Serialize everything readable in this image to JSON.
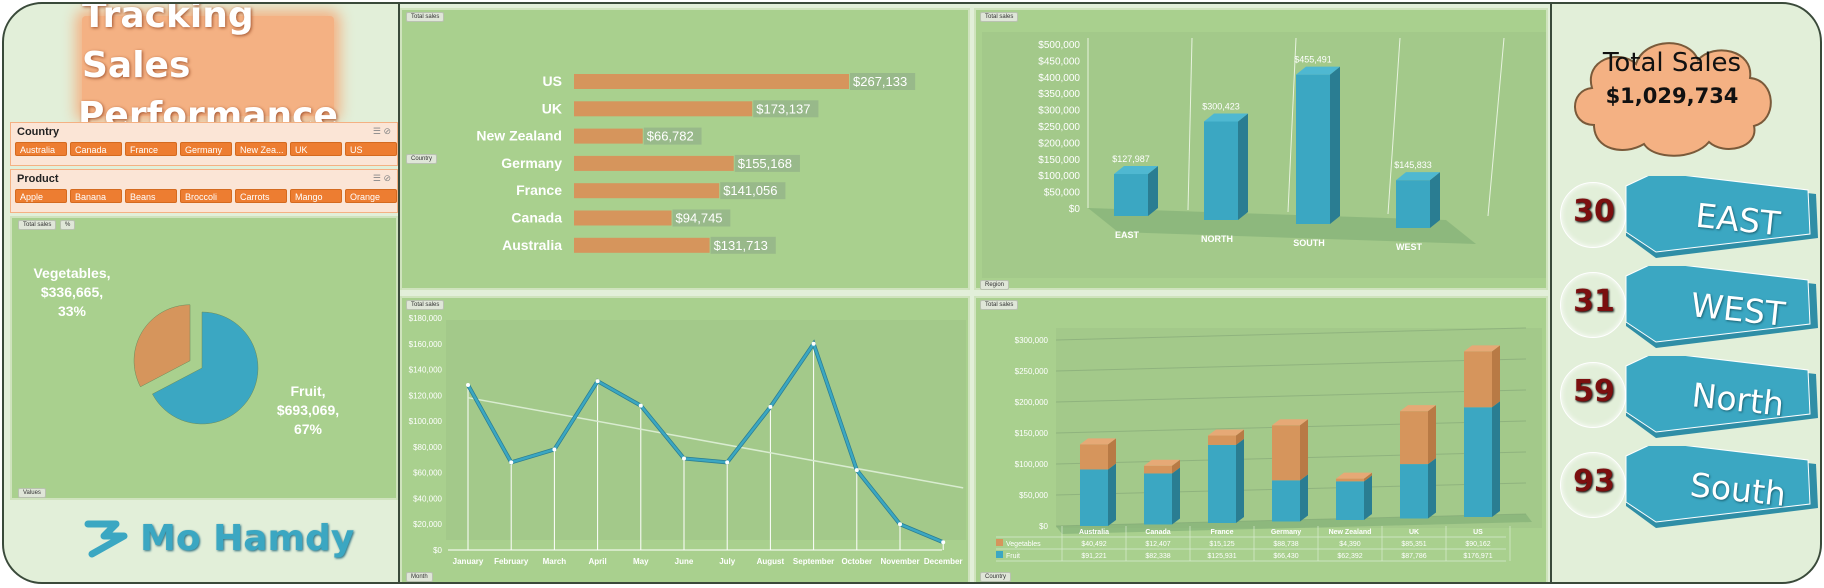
{
  "header": {
    "title_line1": "Tracking Sales",
    "title_line2": "Performance"
  },
  "slicers": {
    "country": {
      "label": "Country",
      "items": [
        "Australia",
        "Canada",
        "France",
        "Germany",
        "New Zea...",
        "UK",
        "US"
      ]
    },
    "product": {
      "label": "Product",
      "items": [
        "Apple",
        "Banana",
        "Beans",
        "Broccoli",
        "Carrots",
        "Mango",
        "Orange"
      ]
    }
  },
  "field_buttons": {
    "total_sales": "Total sales",
    "percent": "%",
    "values": "Values",
    "country": "Country",
    "region": "Region",
    "month": "Month"
  },
  "brand": {
    "name": "Mo Hamdy",
    "color": "#3ba7c2"
  },
  "totals": {
    "label": "Total Sales",
    "value": "$1,029,734"
  },
  "regions": [
    {
      "count": "30",
      "name": "EAST"
    },
    {
      "count": "31",
      "name": "WEST"
    },
    {
      "count": "59",
      "name": "North"
    },
    {
      "count": "93",
      "name": "South"
    }
  ],
  "colors": {
    "orange": "#d6955c",
    "teal": "#3ba7c2",
    "panel": "#a9d08e"
  },
  "chart_data": [
    {
      "type": "pie",
      "labels": [
        "Vegetables",
        "Fruit"
      ],
      "values": [
        336665,
        693069
      ],
      "data_labels": [
        [
          "Vegetables,",
          "$336,665,",
          "33%"
        ],
        [
          "Fruit,",
          "$693,069,",
          "67%"
        ]
      ]
    },
    {
      "type": "bar",
      "orientation": "horizontal",
      "categories": [
        "US",
        "UK",
        "New Zealand",
        "Germany",
        "France",
        "Canada",
        "Australia"
      ],
      "values": [
        267133,
        173137,
        66782,
        155168,
        141056,
        94745,
        131713
      ],
      "data_labels": [
        "$267,133",
        "$173,137",
        "$66,782",
        "$155,168",
        "$141,056",
        "$94,745",
        "$131,713"
      ]
    },
    {
      "type": "bar",
      "style": "3d-column",
      "categories": [
        "EAST",
        "NORTH",
        "SOUTH",
        "WEST"
      ],
      "values": [
        127987,
        300423,
        455491,
        145833
      ],
      "data_labels": [
        "$127,987",
        "$300,423",
        "$455,491",
        "$145,833"
      ],
      "yticks": [
        "$0",
        "$50,000",
        "$100,000",
        "$150,000",
        "$200,000",
        "$250,000",
        "$300,000",
        "$350,000",
        "$400,000",
        "$450,000",
        "$500,000"
      ],
      "ylim": [
        0,
        500000
      ]
    },
    {
      "type": "line",
      "categories": [
        "January",
        "February",
        "March",
        "April",
        "May",
        "June",
        "July",
        "August",
        "September",
        "October",
        "November",
        "December"
      ],
      "values": [
        128000,
        68000,
        78000,
        131000,
        112000,
        71000,
        68000,
        111000,
        160000,
        62000,
        20000,
        6000
      ],
      "trendline": true,
      "yticks": [
        "$0",
        "$20,000",
        "$40,000",
        "$60,000",
        "$80,000",
        "$100,000",
        "$120,000",
        "$140,000",
        "$160,000",
        "$180,000"
      ],
      "ylim": [
        0,
        180000
      ]
    },
    {
      "type": "bar",
      "style": "stacked-3d-column",
      "categories": [
        "Australia",
        "Canada",
        "France",
        "Germany",
        "New Zealand",
        "UK",
        "US"
      ],
      "series": [
        {
          "name": "Vegetables",
          "values": [
            40492,
            12407,
            15125,
            88738,
            4390,
            85351,
            90162
          ],
          "labels": [
            "$40,492",
            "$12,407",
            "$15,125",
            "$88,738",
            "$4,390",
            "$85,351",
            "$90,162"
          ]
        },
        {
          "name": "Fruit",
          "values": [
            91221,
            82338,
            125931,
            66430,
            62392,
            87786,
            176971
          ],
          "labels": [
            "$91,221",
            "$82,338",
            "$125,931",
            "$66,430",
            "$62,392",
            "$87,786",
            "$176,971"
          ]
        }
      ],
      "yticks": [
        "$0",
        "$50,000",
        "$100,000",
        "$150,000",
        "$200,000",
        "$250,000",
        "$300,000"
      ],
      "ylim": [
        0,
        300000
      ]
    }
  ]
}
